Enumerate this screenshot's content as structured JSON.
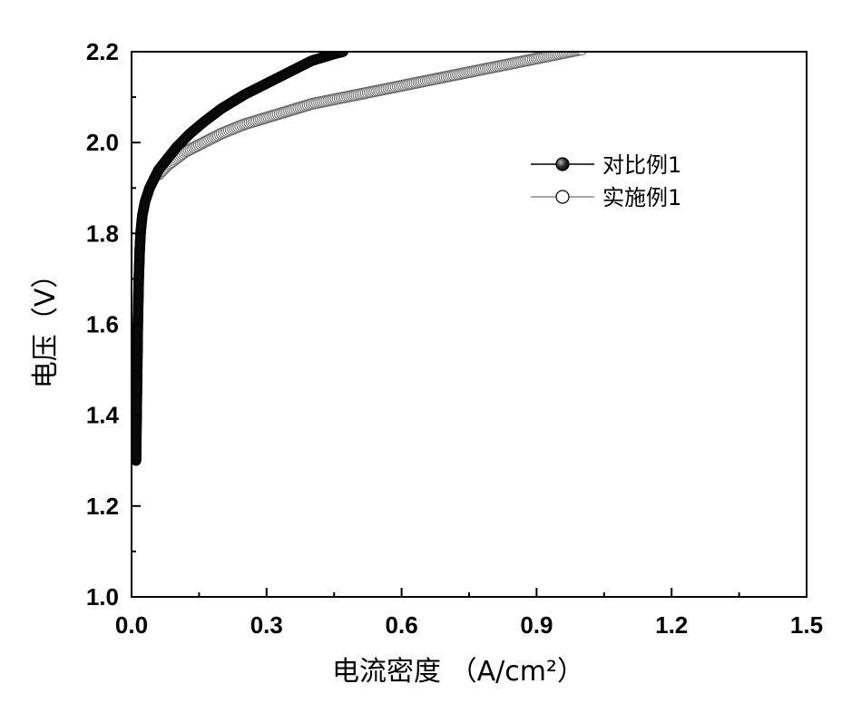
{
  "chart_data": {
    "type": "scatter",
    "xlabel": "电流密度 （A/cm²）",
    "ylabel": "电压（V）",
    "xlim": [
      0.0,
      1.5
    ],
    "ylim": [
      1.0,
      2.2
    ],
    "xticks": [
      "0.0",
      "0.3",
      "0.6",
      "0.9",
      "1.2",
      "1.5"
    ],
    "yticks": [
      "1.0",
      "1.2",
      "1.4",
      "1.6",
      "1.8",
      "2.0",
      "2.2"
    ],
    "grid": false,
    "legend_position": "right",
    "series": [
      {
        "name": "对比例1",
        "marker": "filled-circle",
        "color": "#000000",
        "x": [
          0.01,
          0.012,
          0.014,
          0.016,
          0.018,
          0.02,
          0.024,
          0.03,
          0.04,
          0.05,
          0.06,
          0.08,
          0.1,
          0.13,
          0.16,
          0.2,
          0.25,
          0.3,
          0.35,
          0.4,
          0.45,
          0.47
        ],
        "y": [
          1.3,
          1.45,
          1.6,
          1.7,
          1.76,
          1.8,
          1.84,
          1.87,
          1.9,
          1.92,
          1.94,
          1.965,
          1.99,
          2.02,
          2.045,
          2.075,
          2.105,
          2.13,
          2.155,
          2.18,
          2.195,
          2.2
        ]
      },
      {
        "name": "实施例1",
        "marker": "open-circle",
        "color": "#000000",
        "x": [
          0.06,
          0.08,
          0.1,
          0.12,
          0.15,
          0.2,
          0.25,
          0.3,
          0.35,
          0.4,
          0.45,
          0.5,
          0.55,
          0.6,
          0.65,
          0.7,
          0.75,
          0.8,
          0.85,
          0.9,
          0.95,
          1.0
        ],
        "y": [
          1.93,
          1.95,
          1.965,
          1.98,
          1.995,
          2.02,
          2.04,
          2.055,
          2.07,
          2.085,
          2.095,
          2.105,
          2.115,
          2.125,
          2.135,
          2.145,
          2.155,
          2.165,
          2.175,
          2.185,
          2.195,
          2.205
        ]
      }
    ]
  }
}
